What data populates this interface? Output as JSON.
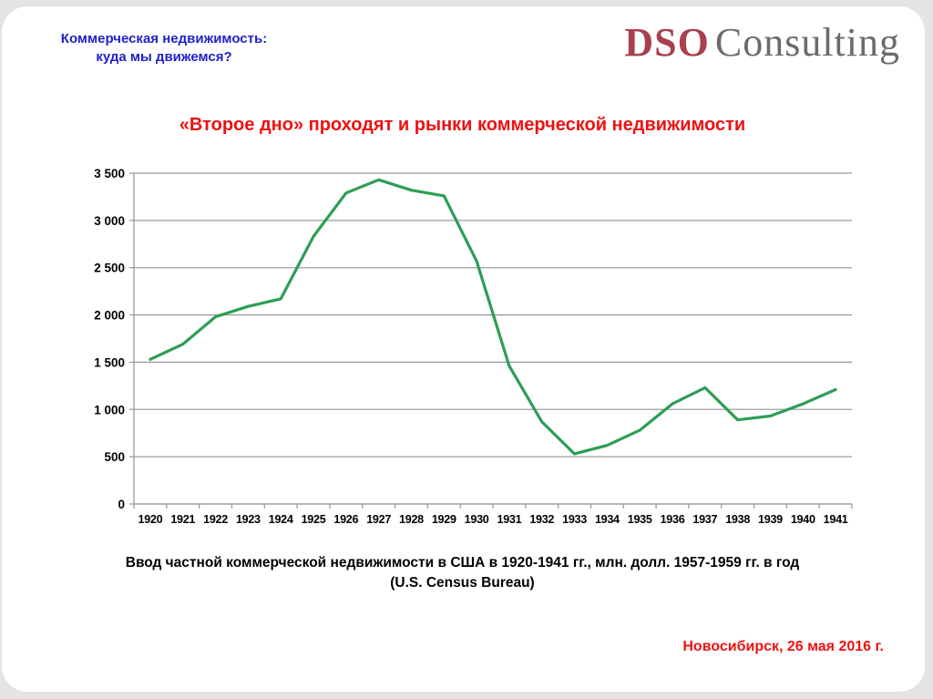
{
  "header": {
    "line1": "Коммерческая недвижимость:",
    "line2": "куда мы движемся?"
  },
  "logo": {
    "name_accent": "DSO",
    "name_rest": "Consulting"
  },
  "title": "«Второе дно» проходят и рынки коммерческой недвижимости",
  "caption": {
    "line1": "Ввод частной коммерческой недвижимости в США в 1920-1941 гг., млн. долл. 1957-1959 гг.  в год",
    "line2": "(U.S. Census Bureau)"
  },
  "footer": {
    "location_date": "Новосибирск, 26 мая 2016 г."
  },
  "colors": {
    "header_blue": "#2121cc",
    "title_red": "#ee1111",
    "footer_red": "#ee1111",
    "logo_red": "#a8404f",
    "logo_gray": "#6b6b6b",
    "line_green": "#2d9e55",
    "grid_gray": "#9c9c9c",
    "tick_label_black": "#000000"
  },
  "chart_data": {
    "type": "line",
    "title": "«Второе дно» проходят и рынки коммерческой недвижимости",
    "xlabel": "",
    "ylabel": "",
    "categories": [
      "1920",
      "1921",
      "1922",
      "1923",
      "1924",
      "1925",
      "1926",
      "1927",
      "1928",
      "1929",
      "1930",
      "1931",
      "1932",
      "1933",
      "1934",
      "1935",
      "1936",
      "1937",
      "1938",
      "1939",
      "1940",
      "1941"
    ],
    "series": [
      {
        "name": "Ввод частной коммерческой недвижимости в США, млн. долл. 1957-1959 гг. в год",
        "values": [
          1530,
          1690,
          1980,
          2090,
          2170,
          2830,
          3290,
          3430,
          3320,
          3260,
          2570,
          1460,
          870,
          530,
          620,
          780,
          1060,
          1230,
          890,
          930,
          1060,
          1210
        ]
      }
    ],
    "ylim": [
      0,
      3500
    ],
    "ytick_step": 500,
    "ytick_labels": [
      "0",
      "500",
      "1 000",
      "1 500",
      "2 000",
      "2 500",
      "3 000",
      "3 500"
    ],
    "grid": true,
    "legend": "none",
    "line_color": "#2d9e55"
  }
}
